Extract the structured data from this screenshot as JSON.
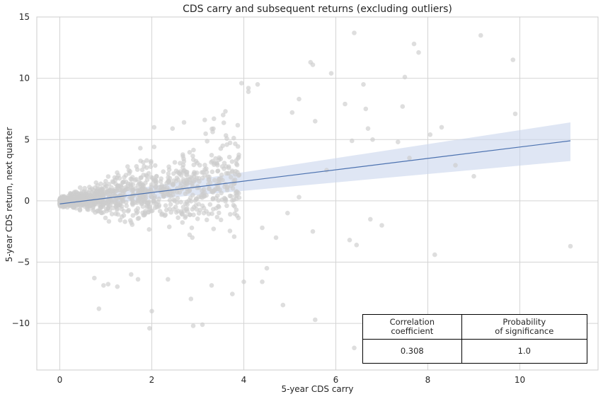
{
  "chart_data": {
    "type": "scatter",
    "title": "CDS carry and subsequent returns (excluding outliers)",
    "xlabel": "5-year CDS carry",
    "ylabel": "5-year CDS return, next quarter",
    "xlim": [
      -0.5,
      11.7
    ],
    "ylim": [
      -13.8,
      15
    ],
    "xticks": [
      0,
      2,
      4,
      6,
      8,
      10
    ],
    "yticks": [
      -10,
      -5,
      0,
      5,
      10,
      15
    ],
    "grid": true,
    "colors": {
      "points": "#cccccc",
      "line": "#4c72b0",
      "band": "#c9d6ec"
    },
    "regression": {
      "x": [
        0,
        11.1
      ],
      "y": [
        -0.25,
        4.9
      ],
      "band_upper": [
        0.05,
        6.4
      ],
      "band_lower": [
        -0.55,
        3.25
      ]
    },
    "highlighted_points": [
      {
        "x": 6.4,
        "y": 13.7
      },
      {
        "x": 9.15,
        "y": 13.5
      },
      {
        "x": 7.7,
        "y": 12.8
      },
      {
        "x": 7.8,
        "y": 12.1
      },
      {
        "x": 9.85,
        "y": 11.5
      },
      {
        "x": 5.45,
        "y": 11.3
      },
      {
        "x": 5.5,
        "y": 11.1
      },
      {
        "x": 5.9,
        "y": 10.4
      },
      {
        "x": 7.5,
        "y": 10.1
      },
      {
        "x": 3.95,
        "y": 9.6
      },
      {
        "x": 4.1,
        "y": 9.2
      },
      {
        "x": 4.1,
        "y": 8.9
      },
      {
        "x": 4.3,
        "y": 9.5
      },
      {
        "x": 6.6,
        "y": 9.5
      },
      {
        "x": 5.2,
        "y": 8.3
      },
      {
        "x": 6.2,
        "y": 7.9
      },
      {
        "x": 6.65,
        "y": 7.5
      },
      {
        "x": 7.45,
        "y": 7.7
      },
      {
        "x": 9.9,
        "y": 7.1
      },
      {
        "x": 5.05,
        "y": 7.2
      },
      {
        "x": 5.55,
        "y": 6.5
      },
      {
        "x": 6.7,
        "y": 5.9
      },
      {
        "x": 8.3,
        "y": 6.0
      },
      {
        "x": 8.05,
        "y": 5.4
      },
      {
        "x": 7.35,
        "y": 4.8
      },
      {
        "x": 6.35,
        "y": 4.9
      },
      {
        "x": 6.8,
        "y": 5.0
      },
      {
        "x": 7.6,
        "y": 3.5
      },
      {
        "x": 8.6,
        "y": 2.9
      },
      {
        "x": 9.0,
        "y": 2.0
      },
      {
        "x": 11.1,
        "y": -3.7
      },
      {
        "x": 8.15,
        "y": -4.4
      },
      {
        "x": 7.0,
        "y": -2.0
      },
      {
        "x": 6.75,
        "y": -1.5
      },
      {
        "x": 6.3,
        "y": -3.2
      },
      {
        "x": 6.45,
        "y": -3.6
      },
      {
        "x": 5.55,
        "y": -9.7
      },
      {
        "x": 6.4,
        "y": -12.0
      },
      {
        "x": 4.85,
        "y": -8.5
      },
      {
        "x": 4.4,
        "y": -6.6
      },
      {
        "x": 4.5,
        "y": -5.5
      },
      {
        "x": 4.0,
        "y": -6.6
      },
      {
        "x": 3.75,
        "y": -7.6
      },
      {
        "x": 3.1,
        "y": -10.1
      },
      {
        "x": 2.9,
        "y": -10.2
      },
      {
        "x": 2.85,
        "y": -8.0
      },
      {
        "x": 1.95,
        "y": -10.4
      },
      {
        "x": 2.0,
        "y": -9.0
      },
      {
        "x": 0.85,
        "y": -8.8
      },
      {
        "x": 0.95,
        "y": -6.9
      },
      {
        "x": 1.05,
        "y": -6.8
      },
      {
        "x": 1.25,
        "y": -7.0
      },
      {
        "x": 0.75,
        "y": -6.3
      },
      {
        "x": 1.55,
        "y": -6.0
      },
      {
        "x": 1.7,
        "y": -6.4
      },
      {
        "x": 2.35,
        "y": -6.4
      },
      {
        "x": 3.3,
        "y": -6.9
      },
      {
        "x": 3.35,
        "y": 6.7
      },
      {
        "x": 3.15,
        "y": 6.6
      },
      {
        "x": 3.6,
        "y": 7.3
      },
      {
        "x": 3.55,
        "y": 7.0
      },
      {
        "x": 2.7,
        "y": 6.4
      },
      {
        "x": 2.45,
        "y": 5.9
      },
      {
        "x": 2.05,
        "y": 6.0
      },
      {
        "x": 1.75,
        "y": 4.3
      },
      {
        "x": 2.05,
        "y": 4.4
      },
      {
        "x": 5.2,
        "y": 0.3
      },
      {
        "x": 5.8,
        "y": 2.5
      },
      {
        "x": 4.95,
        "y": -1.0
      },
      {
        "x": 5.5,
        "y": -2.5
      },
      {
        "x": 4.7,
        "y": -3.0
      },
      {
        "x": 4.4,
        "y": -2.2
      }
    ],
    "cloud": {
      "n": 1250,
      "x_range": [
        0,
        3.9
      ],
      "seed": 7
    },
    "table": {
      "headers": [
        "Correlation\ncoefficient",
        "Probability\nof significance"
      ],
      "values": [
        "0.308",
        "1.0"
      ]
    }
  }
}
